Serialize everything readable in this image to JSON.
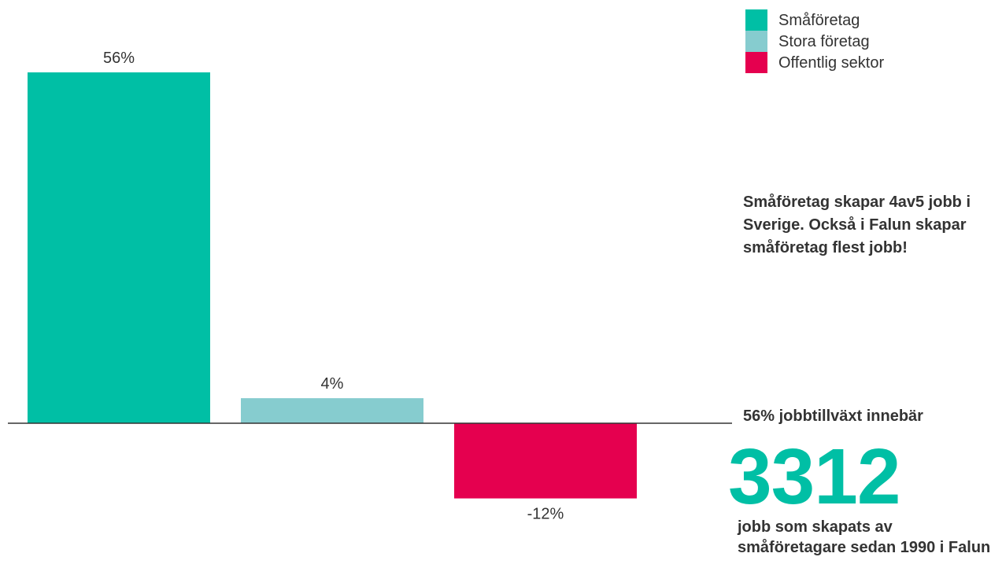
{
  "chart_data": {
    "type": "bar",
    "categories": [
      "Småföretag",
      "Stora företag",
      "Offentlig sektor"
    ],
    "values": [
      56,
      4,
      -12
    ],
    "value_labels": [
      "56%",
      "4%",
      "-12%"
    ],
    "colors": [
      "#00bfa5",
      "#86cccf",
      "#e5004f"
    ],
    "ylim": [
      -12,
      56
    ],
    "grid": false,
    "legend_position": "top-right"
  },
  "legend": {
    "items": [
      {
        "label": "Småföretag",
        "color": "#00bfa5"
      },
      {
        "label": "Stora företag",
        "color": "#86cccf"
      },
      {
        "label": "Offentlig sektor",
        "color": "#e5004f"
      }
    ]
  },
  "annotations": {
    "note": "Småföretag skapar 4av5 jobb i Sverige. Också i Falun skapar småföretag flest jobb!",
    "growth": "56% jobbtillväxt innebär",
    "big_number": "3312",
    "caption": "jobb som skapats av småföretagare sedan 1990 i Falun"
  }
}
